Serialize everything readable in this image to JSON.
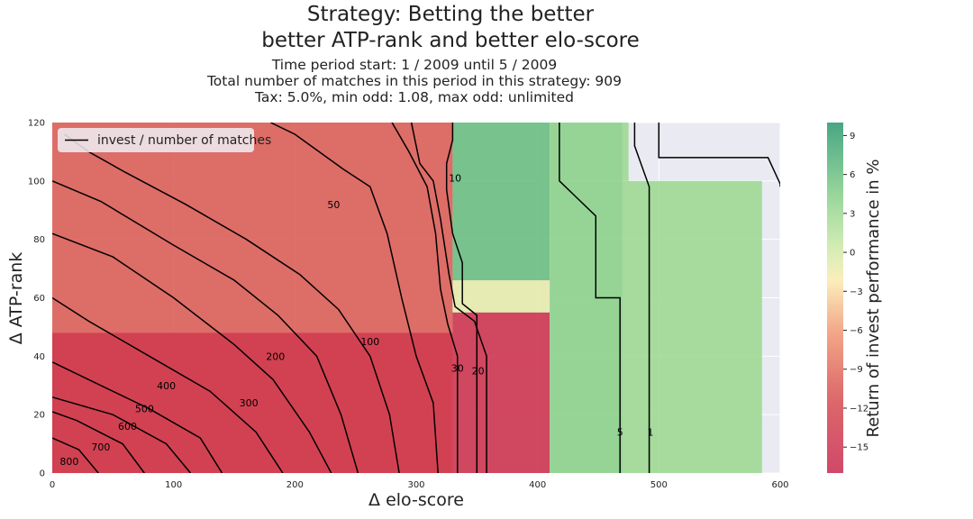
{
  "chart_data": {
    "type": "heatmap",
    "title_lines": [
      "Strategy: Betting the better",
      "better ATP-rank and better elo-score"
    ],
    "subtitle_lines": [
      "Time period start: 1 / 2009 until 5 / 2009",
      "Total number of matches in this period in this strategy: 909",
      "Tax: 5.0%, min odd: 1.08, max odd: unlimited"
    ],
    "xlabel": "Δ elo-score",
    "ylabel": "Δ ATP-rank",
    "xlim": [
      0,
      600
    ],
    "ylim": [
      0,
      120
    ],
    "x_ticks": [
      0,
      100,
      200,
      300,
      400,
      500,
      600
    ],
    "y_ticks": [
      0,
      20,
      40,
      60,
      80,
      100,
      120
    ],
    "legend": {
      "label": "invest / number of matches",
      "placement": "top-left"
    },
    "colorbar": {
      "label": "Return of invest performance in %",
      "ticks": [
        9,
        6,
        3,
        0,
        -3,
        -6,
        -9,
        -12,
        -15
      ],
      "tick_labels": [
        "9",
        "6",
        "3",
        "0",
        "−3",
        "−6",
        "−9",
        "−12",
        "−15"
      ],
      "range": [
        -17,
        10
      ]
    },
    "regions": [
      {
        "x0": 0,
        "x1": 330,
        "y0": 0,
        "y1": 120,
        "value": -10
      },
      {
        "x0": 0,
        "x1": 330,
        "y0": 0,
        "y1": 48,
        "value": -14
      },
      {
        "x0": 330,
        "x1": 410,
        "y0": 0,
        "y1": 55,
        "value": -15
      },
      {
        "x0": 330,
        "x1": 410,
        "y0": 55,
        "y1": 66,
        "value": -1
      },
      {
        "x0": 330,
        "x1": 410,
        "y0": 66,
        "y1": 120,
        "value": 6
      },
      {
        "x0": 410,
        "x1": 470,
        "y0": 0,
        "y1": 120,
        "value": 4
      },
      {
        "x0": 470,
        "x1": 585,
        "y0": 0,
        "y1": 100,
        "value": 3
      },
      {
        "x0": 470,
        "x1": 475,
        "y0": 100,
        "y1": 120,
        "value": 3
      }
    ],
    "contours": [
      {
        "level": "1",
        "points": [
          [
            600,
            98
          ],
          [
            600,
            99
          ],
          [
            590,
            108
          ],
          [
            500,
            108
          ],
          [
            500,
            120
          ]
        ]
      },
      {
        "level": "1",
        "points": [
          [
            492,
            0
          ],
          [
            492,
            98
          ],
          [
            480,
            112
          ],
          [
            480,
            120
          ]
        ]
      },
      {
        "level": "5",
        "points": [
          [
            468,
            0
          ],
          [
            468,
            60
          ],
          [
            448,
            60
          ],
          [
            448,
            88
          ],
          [
            418,
            100
          ],
          [
            418,
            120
          ]
        ]
      },
      {
        "level": "10",
        "points": [
          [
            350,
            0
          ],
          [
            350,
            54
          ],
          [
            338,
            58
          ],
          [
            338,
            72
          ],
          [
            330,
            82
          ],
          [
            325,
            97
          ],
          [
            325,
            106
          ],
          [
            330,
            114
          ],
          [
            330,
            120
          ]
        ]
      },
      {
        "level": "20",
        "points": [
          [
            358,
            0
          ],
          [
            358,
            40
          ],
          [
            348,
            52
          ],
          [
            332,
            57
          ],
          [
            327,
            68
          ],
          [
            320,
            87
          ],
          [
            314,
            100
          ],
          [
            303,
            106
          ],
          [
            296,
            120
          ]
        ]
      },
      {
        "level": "30",
        "points": [
          [
            334,
            0
          ],
          [
            334,
            40
          ],
          [
            326,
            51
          ],
          [
            320,
            63
          ],
          [
            316,
            82
          ],
          [
            309,
            98
          ],
          [
            294,
            110
          ],
          [
            280,
            120
          ]
        ]
      },
      {
        "level": "50",
        "points": [
          [
            318,
            0
          ],
          [
            314,
            24
          ],
          [
            300,
            40
          ],
          [
            288,
            60
          ],
          [
            276,
            82
          ],
          [
            262,
            98
          ],
          [
            240,
            104
          ],
          [
            200,
            116
          ],
          [
            180,
            120
          ]
        ]
      },
      {
        "level": "100",
        "points": [
          [
            286,
            0
          ],
          [
            278,
            20
          ],
          [
            262,
            40
          ],
          [
            236,
            56
          ],
          [
            204,
            68
          ],
          [
            160,
            80
          ],
          [
            110,
            92
          ],
          [
            60,
            103
          ],
          [
            30,
            110
          ],
          [
            10,
            116
          ]
        ]
      },
      {
        "level": "200",
        "points": [
          [
            252,
            0
          ],
          [
            238,
            20
          ],
          [
            218,
            40
          ],
          [
            186,
            54
          ],
          [
            150,
            66
          ],
          [
            100,
            78
          ],
          [
            40,
            93
          ],
          [
            0,
            100
          ]
        ]
      },
      {
        "level": "300",
        "points": [
          [
            230,
            0
          ],
          [
            212,
            14
          ],
          [
            182,
            32
          ],
          [
            150,
            44
          ],
          [
            100,
            60
          ],
          [
            50,
            74
          ],
          [
            0,
            82
          ]
        ]
      },
      {
        "level": "400",
        "points": [
          [
            190,
            0
          ],
          [
            168,
            14
          ],
          [
            130,
            28
          ],
          [
            80,
            40
          ],
          [
            30,
            52
          ],
          [
            0,
            60
          ]
        ]
      },
      {
        "level": "500",
        "points": [
          [
            140,
            0
          ],
          [
            122,
            12
          ],
          [
            80,
            22
          ],
          [
            30,
            32
          ],
          [
            0,
            38
          ]
        ]
      },
      {
        "level": "600",
        "points": [
          [
            114,
            0
          ],
          [
            94,
            10
          ],
          [
            50,
            20
          ],
          [
            0,
            26
          ]
        ]
      },
      {
        "level": "700",
        "points": [
          [
            76,
            0
          ],
          [
            58,
            10
          ],
          [
            20,
            18
          ],
          [
            0,
            21
          ]
        ]
      },
      {
        "level": "800",
        "points": [
          [
            38,
            0
          ],
          [
            22,
            8
          ],
          [
            0,
            12
          ]
        ]
      }
    ],
    "contour_labels": [
      {
        "text": "10",
        "x": 332,
        "y": 101
      },
      {
        "text": "50",
        "x": 232,
        "y": 92
      },
      {
        "text": "100",
        "x": 262,
        "y": 45
      },
      {
        "text": "200",
        "x": 184,
        "y": 40
      },
      {
        "text": "300",
        "x": 162,
        "y": 24
      },
      {
        "text": "400",
        "x": 94,
        "y": 30
      },
      {
        "text": "500",
        "x": 76,
        "y": 22
      },
      {
        "text": "600",
        "x": 62,
        "y": 16
      },
      {
        "text": "700",
        "x": 40,
        "y": 9
      },
      {
        "text": "800",
        "x": 14,
        "y": 4
      },
      {
        "text": "30",
        "x": 334,
        "y": 36
      },
      {
        "text": "20",
        "x": 351,
        "y": 35
      },
      {
        "text": "5",
        "x": 468,
        "y": 14
      },
      {
        "text": "1",
        "x": 493,
        "y": 14
      }
    ]
  }
}
